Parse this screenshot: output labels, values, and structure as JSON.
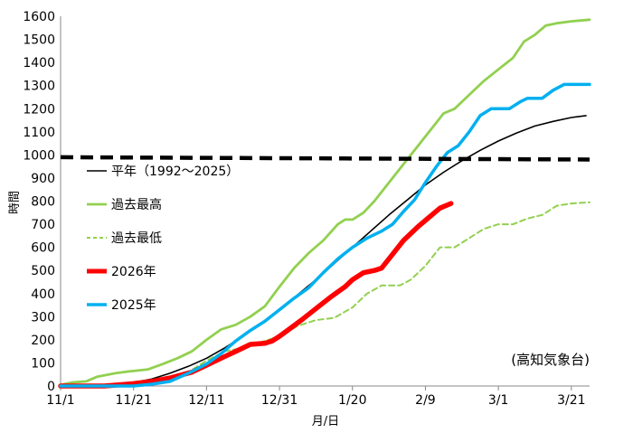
{
  "chart_data": {
    "type": "line",
    "xlabel": "月/日",
    "ylabel": "時間",
    "note": "(高知気象台)",
    "x_ticks": [
      "11/1",
      "11/21",
      "12/11",
      "12/31",
      "1/20",
      "2/9",
      "3/1",
      "3/21"
    ],
    "x_range_days": [
      0,
      145
    ],
    "ylim": [
      0,
      1600
    ],
    "y_ticks": [
      "0",
      "100",
      "200",
      "300",
      "400",
      "500",
      "600",
      "700",
      "800",
      "900",
      "1000",
      "1100",
      "1200",
      "1300",
      "1400",
      "1500",
      "1600"
    ],
    "threshold": {
      "value_start": 990,
      "value_end": 980
    },
    "series": [
      {
        "name": "平年（1992～2025）",
        "color": "#000000",
        "width": 1.6,
        "dash": "",
        "points": [
          [
            0,
            0
          ],
          [
            10,
            3
          ],
          [
            15,
            8
          ],
          [
            20,
            15
          ],
          [
            25,
            30
          ],
          [
            30,
            55
          ],
          [
            35,
            85
          ],
          [
            40,
            120
          ],
          [
            45,
            165
          ],
          [
            50,
            215
          ],
          [
            55,
            270
          ],
          [
            60,
            330
          ],
          [
            65,
            395
          ],
          [
            70,
            460
          ],
          [
            75,
            530
          ],
          [
            80,
            600
          ],
          [
            85,
            670
          ],
          [
            90,
            740
          ],
          [
            95,
            805
          ],
          [
            100,
            870
          ],
          [
            105,
            925
          ],
          [
            110,
            975
          ],
          [
            115,
            1020
          ],
          [
            120,
            1060
          ],
          [
            125,
            1095
          ],
          [
            130,
            1125
          ],
          [
            135,
            1145
          ],
          [
            140,
            1162
          ],
          [
            144,
            1170
          ]
        ]
      },
      {
        "name": "過去最高",
        "color": "#92d050",
        "width": 2.8,
        "dash": "",
        "points": [
          [
            0,
            5
          ],
          [
            3,
            15
          ],
          [
            7,
            20
          ],
          [
            10,
            40
          ],
          [
            15,
            55
          ],
          [
            18,
            62
          ],
          [
            20,
            65
          ],
          [
            24,
            72
          ],
          [
            28,
            95
          ],
          [
            32,
            120
          ],
          [
            36,
            150
          ],
          [
            40,
            200
          ],
          [
            44,
            245
          ],
          [
            48,
            265
          ],
          [
            52,
            300
          ],
          [
            56,
            345
          ],
          [
            60,
            430
          ],
          [
            64,
            510
          ],
          [
            68,
            575
          ],
          [
            72,
            630
          ],
          [
            76,
            700
          ],
          [
            78,
            720
          ],
          [
            80,
            720
          ],
          [
            83,
            750
          ],
          [
            86,
            800
          ],
          [
            90,
            880
          ],
          [
            94,
            960
          ],
          [
            98,
            1040
          ],
          [
            102,
            1120
          ],
          [
            105,
            1180
          ],
          [
            108,
            1200
          ],
          [
            112,
            1260
          ],
          [
            116,
            1320
          ],
          [
            120,
            1370
          ],
          [
            124,
            1420
          ],
          [
            127,
            1490
          ],
          [
            130,
            1520
          ],
          [
            133,
            1560
          ],
          [
            136,
            1570
          ],
          [
            140,
            1578
          ],
          [
            145,
            1585
          ]
        ]
      },
      {
        "name": "過去最低",
        "color": "#92d050",
        "width": 2,
        "dash": "6,4",
        "points": [
          [
            0,
            0
          ],
          [
            20,
            3
          ],
          [
            30,
            20
          ],
          [
            35,
            60
          ],
          [
            40,
            110
          ],
          [
            45,
            150
          ],
          [
            50,
            165
          ],
          [
            55,
            190
          ],
          [
            60,
            215
          ],
          [
            65,
            260
          ],
          [
            70,
            285
          ],
          [
            75,
            295
          ],
          [
            80,
            340
          ],
          [
            84,
            400
          ],
          [
            88,
            435
          ],
          [
            93,
            435
          ],
          [
            96,
            460
          ],
          [
            100,
            520
          ],
          [
            104,
            600
          ],
          [
            108,
            600
          ],
          [
            112,
            640
          ],
          [
            116,
            680
          ],
          [
            120,
            700
          ],
          [
            124,
            700
          ],
          [
            128,
            725
          ],
          [
            132,
            740
          ],
          [
            136,
            780
          ],
          [
            140,
            790
          ],
          [
            145,
            795
          ]
        ]
      },
      {
        "name": "2026年",
        "color": "#ff0000",
        "width": 5.5,
        "dash": "",
        "points": [
          [
            0,
            0
          ],
          [
            12,
            0
          ],
          [
            16,
            5
          ],
          [
            20,
            10
          ],
          [
            25,
            20
          ],
          [
            30,
            35
          ],
          [
            36,
            60
          ],
          [
            40,
            90
          ],
          [
            44,
            120
          ],
          [
            48,
            150
          ],
          [
            52,
            180
          ],
          [
            56,
            185
          ],
          [
            58,
            195
          ],
          [
            60,
            215
          ],
          [
            63,
            250
          ],
          [
            66,
            285
          ],
          [
            70,
            335
          ],
          [
            74,
            385
          ],
          [
            78,
            430
          ],
          [
            80,
            460
          ],
          [
            83,
            490
          ],
          [
            86,
            500
          ],
          [
            88,
            510
          ],
          [
            91,
            570
          ],
          [
            94,
            630
          ],
          [
            98,
            690
          ],
          [
            101,
            730
          ],
          [
            104,
            770
          ],
          [
            107,
            790
          ]
        ]
      },
      {
        "name": "2025年",
        "color": "#00b0f0",
        "width": 3.5,
        "dash": "",
        "points": [
          [
            0,
            0
          ],
          [
            20,
            0
          ],
          [
            25,
            8
          ],
          [
            30,
            20
          ],
          [
            35,
            55
          ],
          [
            40,
            95
          ],
          [
            44,
            140
          ],
          [
            48,
            195
          ],
          [
            52,
            240
          ],
          [
            56,
            280
          ],
          [
            60,
            330
          ],
          [
            64,
            380
          ],
          [
            68,
            425
          ],
          [
            72,
            490
          ],
          [
            76,
            550
          ],
          [
            80,
            600
          ],
          [
            84,
            640
          ],
          [
            88,
            670
          ],
          [
            91,
            700
          ],
          [
            94,
            755
          ],
          [
            97,
            805
          ],
          [
            100,
            880
          ],
          [
            103,
            950
          ],
          [
            106,
            1010
          ],
          [
            109,
            1040
          ],
          [
            112,
            1100
          ],
          [
            115,
            1170
          ],
          [
            118,
            1200
          ],
          [
            123,
            1200
          ],
          [
            126,
            1230
          ],
          [
            128,
            1245
          ],
          [
            132,
            1245
          ],
          [
            135,
            1280
          ],
          [
            138,
            1305
          ],
          [
            145,
            1305
          ]
        ]
      }
    ]
  }
}
